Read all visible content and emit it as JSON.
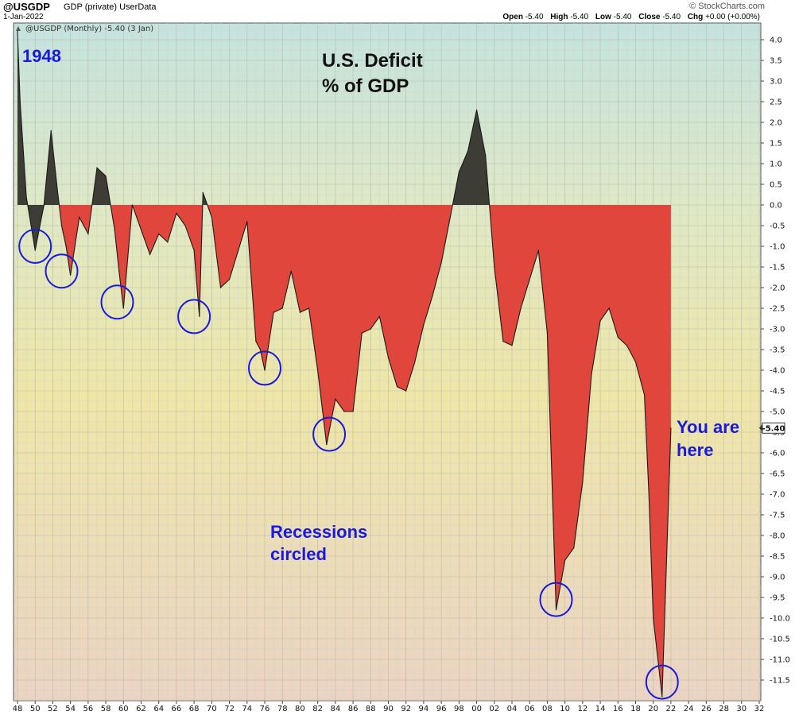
{
  "header": {
    "symbol": "@USGDP",
    "subtitle": "GDP (private)  UserData",
    "date": "1-Jan-2022",
    "brand": "© StockCharts.com",
    "ohlc": {
      "open_label": "Open",
      "open": "-5.40",
      "high_label": "High",
      "high": "-5.40",
      "low_label": "Low",
      "low": "-5.40",
      "close_label": "Close",
      "close": "-5.40",
      "chg_label": "Chg",
      "chg": "+0.00 (+0.00%)"
    }
  },
  "colors": {
    "deficit": "#e0463c",
    "surplus": "#3d3d36",
    "circle": "#1a1adc",
    "annotation": "#1a1adc"
  },
  "chart_data": {
    "type": "area",
    "legend": "@USGDP (Monthly) -5.40 (3 Jan)",
    "title_line1": "U.S. Deficit",
    "title_line2": "% of GDP",
    "start_label": "1948",
    "note_here_line1": "You are",
    "note_here_line2": "here",
    "note_recessions_line1": "Recessions",
    "note_recessions_line2": "circled",
    "last_value_badge": "-5.40",
    "ylim": [
      -12.0,
      4.3
    ],
    "xlim": [
      1948,
      2032
    ],
    "y_ticks": [
      4.0,
      3.5,
      3.0,
      2.5,
      2.0,
      1.5,
      1.0,
      0.5,
      0.0,
      -0.5,
      -1.0,
      -1.5,
      -2.0,
      -2.5,
      -3.0,
      -3.5,
      -4.0,
      -4.5,
      -5.0,
      -5.5,
      -6.0,
      -6.5,
      -7.0,
      -7.5,
      -8.0,
      -8.5,
      -9.0,
      -9.5,
      -10.0,
      -10.5,
      -11.0,
      -11.5
    ],
    "y_tick_labels": [
      "4.0",
      "3.5",
      "3.0",
      "2.5",
      "2.0",
      "1.5",
      "1.0",
      "0.5",
      "0.0",
      "-0.5",
      "-1.0",
      "-1.5",
      "-2.0",
      "-2.5",
      "-3.0",
      "-3.5",
      "-4.0",
      "-4.5",
      "-5.0",
      "-5.5",
      "-6.0",
      "-6.5",
      "-7.0",
      "-7.5",
      "-8.0",
      "-8.5",
      "-9.0",
      "-9.5",
      "-10.0",
      "-10.5",
      "-11.0",
      "-11.5"
    ],
    "x_tick_labels": [
      "48",
      "50",
      "52",
      "54",
      "56",
      "58",
      "60",
      "62",
      "64",
      "66",
      "68",
      "70",
      "72",
      "74",
      "76",
      "78",
      "80",
      "82",
      "84",
      "86",
      "88",
      "90",
      "92",
      "94",
      "96",
      "98",
      "00",
      "02",
      "04",
      "06",
      "08",
      "10",
      "12",
      "14",
      "16",
      "18",
      "20",
      "22",
      "24",
      "26",
      "28",
      "30",
      "32"
    ],
    "series": [
      {
        "name": "US Deficit % of GDP",
        "x": [
          1948,
          1948.3,
          1949,
          1950,
          1951,
          1951.8,
          1952.5,
          1953,
          1953.5,
          1954,
          1955,
          1956,
          1957,
          1958,
          1959,
          1959.5,
          1960,
          1961,
          1962,
          1963,
          1964,
          1965,
          1966,
          1967,
          1968,
          1968.6,
          1969,
          1970,
          1971,
          1972,
          1973,
          1974,
          1975,
          1975.5,
          1976,
          1977,
          1978,
          1979,
          1980,
          1981,
          1982,
          1983,
          1984,
          1985,
          1986,
          1987,
          1988,
          1989,
          1990,
          1991,
          1992,
          1993,
          1994,
          1995,
          1996,
          1997,
          1998,
          1999,
          2000,
          2001,
          2002,
          2003,
          2004,
          2005,
          2006,
          2007,
          2008,
          2009,
          2010,
          2011,
          2012,
          2013,
          2014,
          2015,
          2016,
          2017,
          2018,
          2019,
          2019.5,
          2020,
          2021,
          2022
        ],
        "values": [
          4.2,
          2.5,
          0.2,
          -1.1,
          0.0,
          1.8,
          0.4,
          -0.5,
          -1.0,
          -1.7,
          -0.3,
          -0.7,
          0.9,
          0.7,
          -0.6,
          -1.6,
          -2.5,
          0.0,
          -0.6,
          -1.2,
          -0.7,
          -0.9,
          -0.2,
          -0.5,
          -1.1,
          -2.7,
          0.3,
          -0.3,
          -2.0,
          -1.8,
          -1.1,
          -0.4,
          -3.3,
          -3.5,
          -4.0,
          -2.6,
          -2.5,
          -1.6,
          -2.6,
          -2.5,
          -4.0,
          -5.8,
          -4.7,
          -5.0,
          -5.0,
          -3.1,
          -3.0,
          -2.7,
          -3.7,
          -4.4,
          -4.5,
          -3.8,
          -2.9,
          -2.2,
          -1.4,
          -0.3,
          0.8,
          1.3,
          2.3,
          1.2,
          -1.5,
          -3.3,
          -3.4,
          -2.5,
          -1.8,
          -1.1,
          -3.1,
          -9.8,
          -8.6,
          -8.3,
          -6.7,
          -4.1,
          -2.8,
          -2.5,
          -3.2,
          -3.4,
          -3.8,
          -4.6,
          -7.0,
          -10.0,
          -11.9,
          -5.4
        ]
      }
    ],
    "recession_circles": [
      {
        "x": 1950.0,
        "y": -1.0
      },
      {
        "x": 1953.0,
        "y": -1.6
      },
      {
        "x": 1959.3,
        "y": -2.35
      },
      {
        "x": 1968.0,
        "y": -2.7
      },
      {
        "x": 1976.0,
        "y": -3.95
      },
      {
        "x": 1983.3,
        "y": -5.55
      },
      {
        "x": 2009.0,
        "y": -9.55
      },
      {
        "x": 2021.0,
        "y": -11.55
      }
    ]
  }
}
